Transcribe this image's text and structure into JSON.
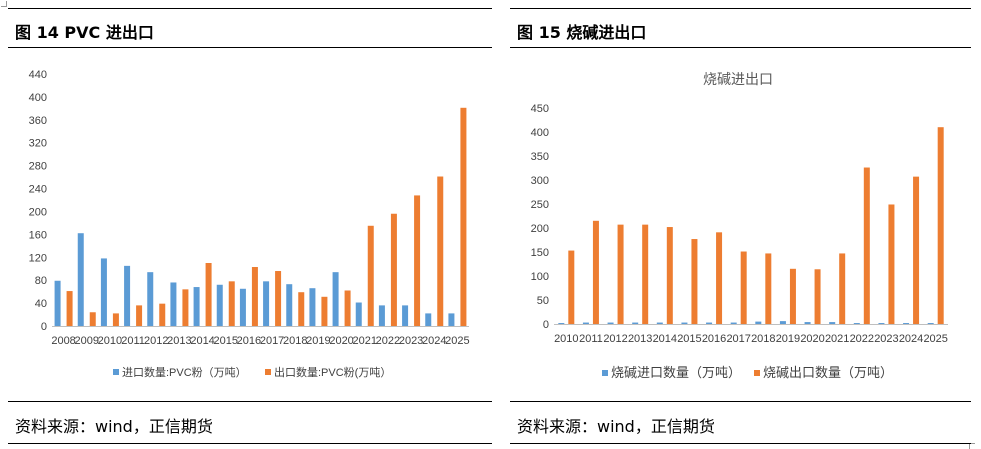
{
  "left_panel": {
    "figure_title": "图 14 PVC 进出口",
    "source": "资料来源：wind，正信期货"
  },
  "right_panel": {
    "figure_title": "图 15  烧碱进出口",
    "source": "资料来源：wind，正信期货"
  },
  "colors": {
    "import": "#5B9BD5",
    "export": "#ED7D31",
    "axis": "#BFBFBF",
    "text": "#404040"
  },
  "chart_data": [
    {
      "type": "bar",
      "title": "",
      "categories": [
        "2008",
        "2009",
        "2010",
        "2011",
        "2012",
        "2013",
        "2014",
        "2015",
        "2016",
        "2017",
        "2018",
        "2019",
        "2020",
        "2021",
        "2022",
        "2023",
        "2024",
        "2025"
      ],
      "series": [
        {
          "name": "进口数量:PVC粉（万吨）",
          "values": [
            79,
            162,
            118,
            105,
            94,
            76,
            68,
            72,
            65,
            78,
            73,
            66,
            94,
            41,
            36,
            36,
            22,
            22
          ]
        },
        {
          "name": "出口数量:PVC粉(万吨）",
          "values": [
            61,
            24,
            22,
            36,
            39,
            64,
            110,
            78,
            103,
            96,
            59,
            51,
            62,
            175,
            196,
            228,
            261,
            381
          ]
        }
      ],
      "ylim": [
        0,
        440
      ],
      "yticks": [
        0,
        40,
        80,
        120,
        160,
        200,
        240,
        280,
        320,
        360,
        400,
        440
      ],
      "grid": false,
      "legend": "bottom"
    },
    {
      "type": "bar",
      "title": "烧碱进出口",
      "categories": [
        "2010",
        "2011",
        "2012",
        "2013",
        "2014",
        "2015",
        "2016",
        "2017",
        "2018",
        "2019",
        "2020",
        "2021",
        "2022",
        "2023",
        "2024",
        "2025"
      ],
      "series": [
        {
          "name": "烧碱进口数量（万吨）",
          "values": [
            2,
            3,
            3,
            3,
            3,
            3,
            3,
            3,
            5,
            6,
            4,
            4,
            2,
            2,
            2,
            2
          ]
        },
        {
          "name": "烧碱出口数量（万吨）",
          "values": [
            153,
            215,
            207,
            207,
            202,
            177,
            191,
            151,
            147,
            115,
            114,
            147,
            326,
            249,
            307,
            410
          ]
        }
      ],
      "ylim": [
        0,
        450
      ],
      "yticks": [
        0,
        50,
        100,
        150,
        200,
        250,
        300,
        350,
        400,
        450
      ],
      "grid": false,
      "legend": "bottom"
    }
  ]
}
